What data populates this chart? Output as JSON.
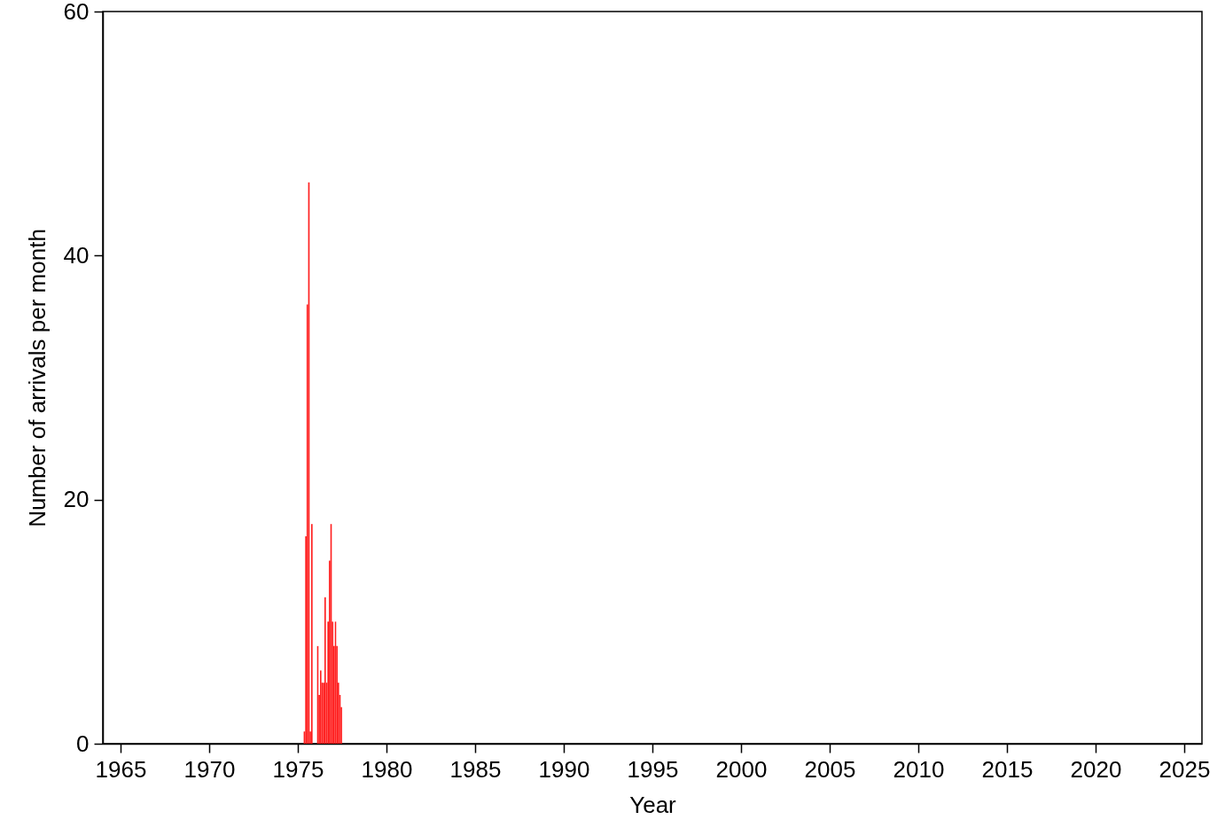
{
  "chart_data": {
    "type": "bar",
    "xlabel": "Year",
    "ylabel": "Number of arrivals per month",
    "x": [
      "1975-05",
      "1975-06",
      "1975-07",
      "1975-08",
      "1975-09",
      "1975-10",
      "1975-11",
      "1975-12",
      "1976-01",
      "1976-02",
      "1976-03",
      "1976-04",
      "1976-05",
      "1976-06",
      "1976-07",
      "1976-08",
      "1976-09",
      "1976-10",
      "1976-11",
      "1976-12",
      "1977-01",
      "1977-02",
      "1977-03",
      "1977-04",
      "1977-05",
      "1977-06"
    ],
    "values": [
      1,
      17,
      36,
      46,
      1,
      18,
      0,
      0,
      0,
      8,
      4,
      6,
      5,
      5,
      12,
      5,
      10,
      15,
      18,
      10,
      8,
      10,
      8,
      5,
      4,
      3
    ],
    "color": "#ff2020",
    "xlim": [
      "1964",
      "2026"
    ],
    "xticks": [
      "1965",
      "1970",
      "1975",
      "1980",
      "1985",
      "1990",
      "1995",
      "2000",
      "2005",
      "2010",
      "2015",
      "2020",
      "2025"
    ],
    "ylim": [
      0,
      60
    ],
    "yticks": [
      0,
      20,
      40,
      60
    ],
    "grid": false
  }
}
